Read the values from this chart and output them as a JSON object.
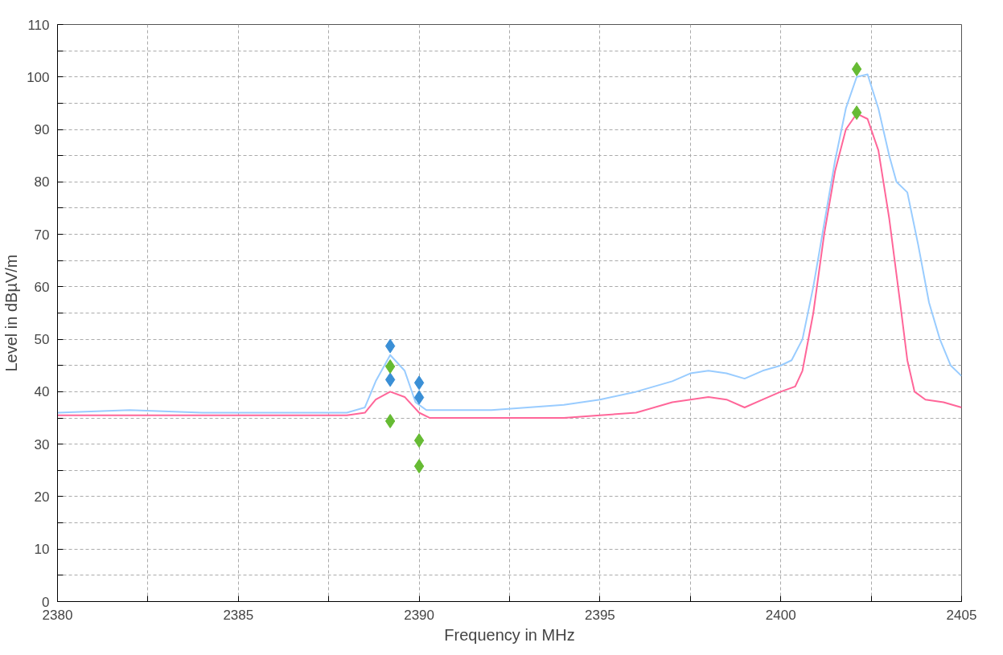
{
  "chart_data": {
    "type": "line",
    "xlabel": "Frequency in MHz",
    "ylabel": "Level in dBµV/m",
    "xlim": [
      2380,
      2405
    ],
    "ylim": [
      0,
      110
    ],
    "xticks": [
      2380,
      {
        "value": 2382.5,
        "label": null
      },
      2385,
      {
        "value": 2387.5,
        "label": null
      },
      2390,
      {
        "value": 2392.5,
        "label": null
      },
      2395,
      {
        "value": 2397.5,
        "label": null
      },
      2400,
      {
        "value": 2402.5,
        "label": null
      },
      2405
    ],
    "yticks": [
      0,
      {
        "value": 5,
        "label": null
      },
      10,
      {
        "value": 15,
        "label": null
      },
      20,
      {
        "value": 25,
        "label": null
      },
      30,
      {
        "value": 35,
        "label": null
      },
      40,
      {
        "value": 45,
        "label": null
      },
      50,
      {
        "value": 55,
        "label": null
      },
      60,
      {
        "value": 65,
        "label": null
      },
      70,
      {
        "value": 75,
        "label": null
      },
      80,
      {
        "value": 85,
        "label": null
      },
      90,
      {
        "value": 95,
        "label": null
      },
      100,
      {
        "value": 105,
        "label": null
      },
      110
    ],
    "grid": true,
    "line_style": "solid",
    "marker": "none",
    "series": [
      {
        "color": "#99ccff",
        "x": [
          2380,
          2382,
          2384,
          2386,
          2388,
          2388.5,
          2388.8,
          2389.2,
          2389.6,
          2389.9,
          2390.2,
          2391,
          2392,
          2393,
          2394,
          2395,
          2396,
          2397,
          2397.5,
          2398,
          2398.5,
          2399,
          2399.5,
          2400,
          2400.3,
          2400.6,
          2400.9,
          2401.2,
          2401.5,
          2401.8,
          2402.1,
          2402.4,
          2402.7,
          2403,
          2403.2,
          2403.5,
          2403.8,
          2404.1,
          2404.4,
          2404.7,
          2405
        ],
        "values": [
          36,
          36.5,
          36,
          36,
          36,
          37,
          42,
          47,
          44,
          38,
          36.5,
          36.5,
          36.5,
          37,
          37.5,
          38.5,
          40,
          42,
          43.5,
          44,
          43.5,
          42.5,
          44,
          45,
          46,
          50,
          60,
          72,
          84,
          94,
          100,
          100.5,
          94,
          85,
          80,
          78,
          68,
          57,
          50,
          45,
          43
        ]
      },
      {
        "color": "#ff6699",
        "x": [
          2380,
          2388,
          2388.5,
          2388.8,
          2389.2,
          2389.6,
          2390,
          2390.3,
          2392,
          2394,
          2395,
          2396,
          2397,
          2398,
          2398.5,
          2399,
          2399.5,
          2400,
          2400.4,
          2400.6,
          2400.9,
          2401.2,
          2401.5,
          2401.8,
          2402.1,
          2402.4,
          2402.7,
          2403,
          2403.3,
          2403.5,
          2403.7,
          2404,
          2404.5,
          2405
        ],
        "values": [
          35.5,
          35.5,
          36,
          38.5,
          40,
          39,
          36,
          35,
          35,
          35,
          35.5,
          36,
          38,
          39,
          38.5,
          37,
          38.5,
          40,
          41,
          44,
          55,
          70,
          82,
          90,
          93,
          92,
          86,
          73,
          57,
          46,
          40,
          38.5,
          38,
          37
        ]
      },
      {
        "type": "scatter",
        "marker": "diamond",
        "color": "#3a8fd6",
        "x": [
          2389.2,
          2389.2,
          2390,
          2390
        ],
        "values": [
          48.7,
          42.3,
          41.7,
          38.9
        ]
      },
      {
        "type": "scatter",
        "marker": "diamond",
        "color": "#66bb33",
        "x": [
          2389.2,
          2389.2,
          2390,
          2390,
          2402.1,
          2402.1
        ],
        "values": [
          44.8,
          34.4,
          30.7,
          25.8,
          101.5,
          93.2
        ]
      }
    ]
  }
}
